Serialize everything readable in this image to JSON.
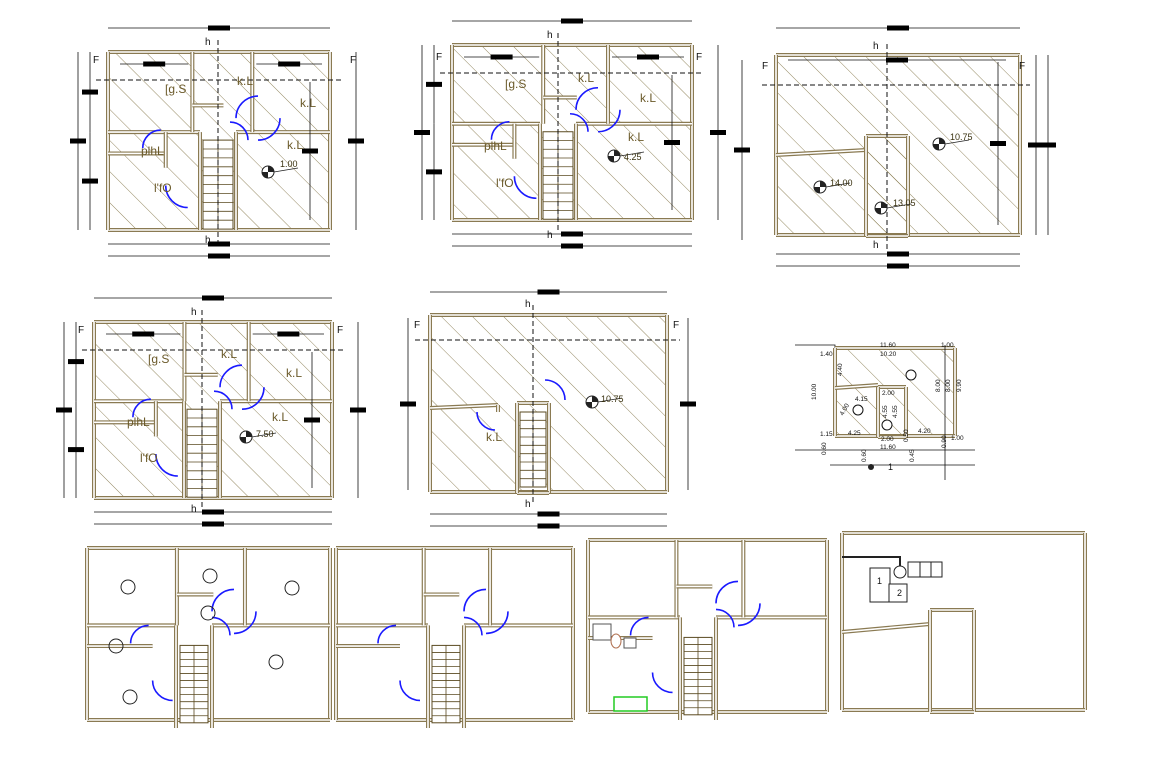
{
  "colors": {
    "wall": "#8a7a52",
    "hatch": "#7a6a3a",
    "door": "#1a1aff",
    "dimension": "#111111",
    "redaction": "#000000",
    "fixture_highlight": "#22cc22"
  },
  "section_marks": {
    "horizontal": "h",
    "vertical": "F"
  },
  "plans": [
    {
      "rooms": [
        "[g.S",
        "k.L",
        "k.L",
        "k.L",
        "plhL",
        "l'fO"
      ],
      "elevation": "1.00"
    },
    {
      "rooms": [
        "[g.S",
        "k.L",
        "k.L",
        "k.L",
        "plhL",
        "l'fO"
      ],
      "elevation": "4.25"
    },
    {
      "rooms": [],
      "elevations": [
        "10.75",
        "14.00",
        "13.05"
      ]
    },
    {
      "rooms": [
        "[g.S",
        "k.L",
        "k.L",
        "k.L",
        "plhL",
        "l'fO"
      ],
      "elevation": "7.50"
    },
    {
      "rooms": [
        "k.L"
      ],
      "elevation": "10.75"
    }
  ],
  "site_plan": {
    "dimensions": [
      "11.60",
      "10.20",
      "1.00",
      "1.40",
      "4.40",
      "10.00",
      "8.00",
      "8.00",
      "9.90",
      "4.15",
      "2.00",
      "4.00",
      "4.55",
      "4.55",
      "1.15",
      "4.25",
      "4.20",
      "1.00",
      "0.60",
      "2.00",
      "0.50",
      "0.90",
      "11.60",
      "0.60",
      "0.45"
    ],
    "reference_label": "1"
  },
  "equipment_labels": [
    "1",
    "2"
  ]
}
